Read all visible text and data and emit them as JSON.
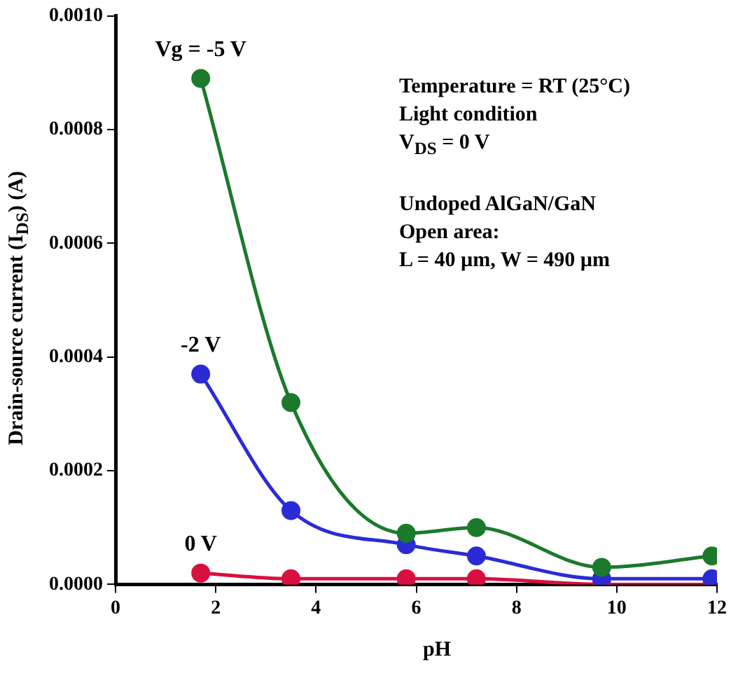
{
  "chart_data": {
    "type": "line",
    "xlabel": "pH",
    "ylabel": "Drain-source current (I$_{DS}$) (A)",
    "x": [
      1.7,
      3.5,
      5.8,
      7.2,
      9.7,
      11.9
    ],
    "series": [
      {
        "name": "Vg = -5 V",
        "color": "#1b7a2b",
        "values": [
          0.00089,
          0.00032,
          9e-05,
          0.0001,
          3e-05,
          5e-05
        ]
      },
      {
        "name": "-2 V",
        "color": "#2b2bd6",
        "values": [
          0.00037,
          0.00013,
          7e-05,
          5e-05,
          1e-05,
          1e-05
        ]
      },
      {
        "name": "0 V",
        "color": "#d81040",
        "values": [
          2e-05,
          1e-05,
          1e-05,
          1e-05,
          0,
          0
        ]
      }
    ],
    "xlim": [
      0,
      12
    ],
    "xticks": [
      0,
      2,
      4,
      6,
      8,
      10,
      12
    ],
    "ylim": [
      0,
      0.001
    ],
    "yticks": [
      {
        "value": 0,
        "label": "0.0000"
      },
      {
        "value": 0.0002,
        "label": "0.0002"
      },
      {
        "value": 0.0004,
        "label": "0.0004"
      },
      {
        "value": 0.0006,
        "label": "0.0006"
      },
      {
        "value": 0.0008,
        "label": "0.0008"
      },
      {
        "value": 0.001,
        "label": "0.0010"
      }
    ],
    "grid": false,
    "legend": false,
    "marker": "circle",
    "line_style": "solid",
    "annotations": [
      "Temperature = RT (25°C)",
      "Light condition",
      "V$_{DS}$ = 0 V",
      "Undoped AlGaN/GaN",
      "Open area:",
      "L = 40 µm, W = 490 µm"
    ]
  }
}
